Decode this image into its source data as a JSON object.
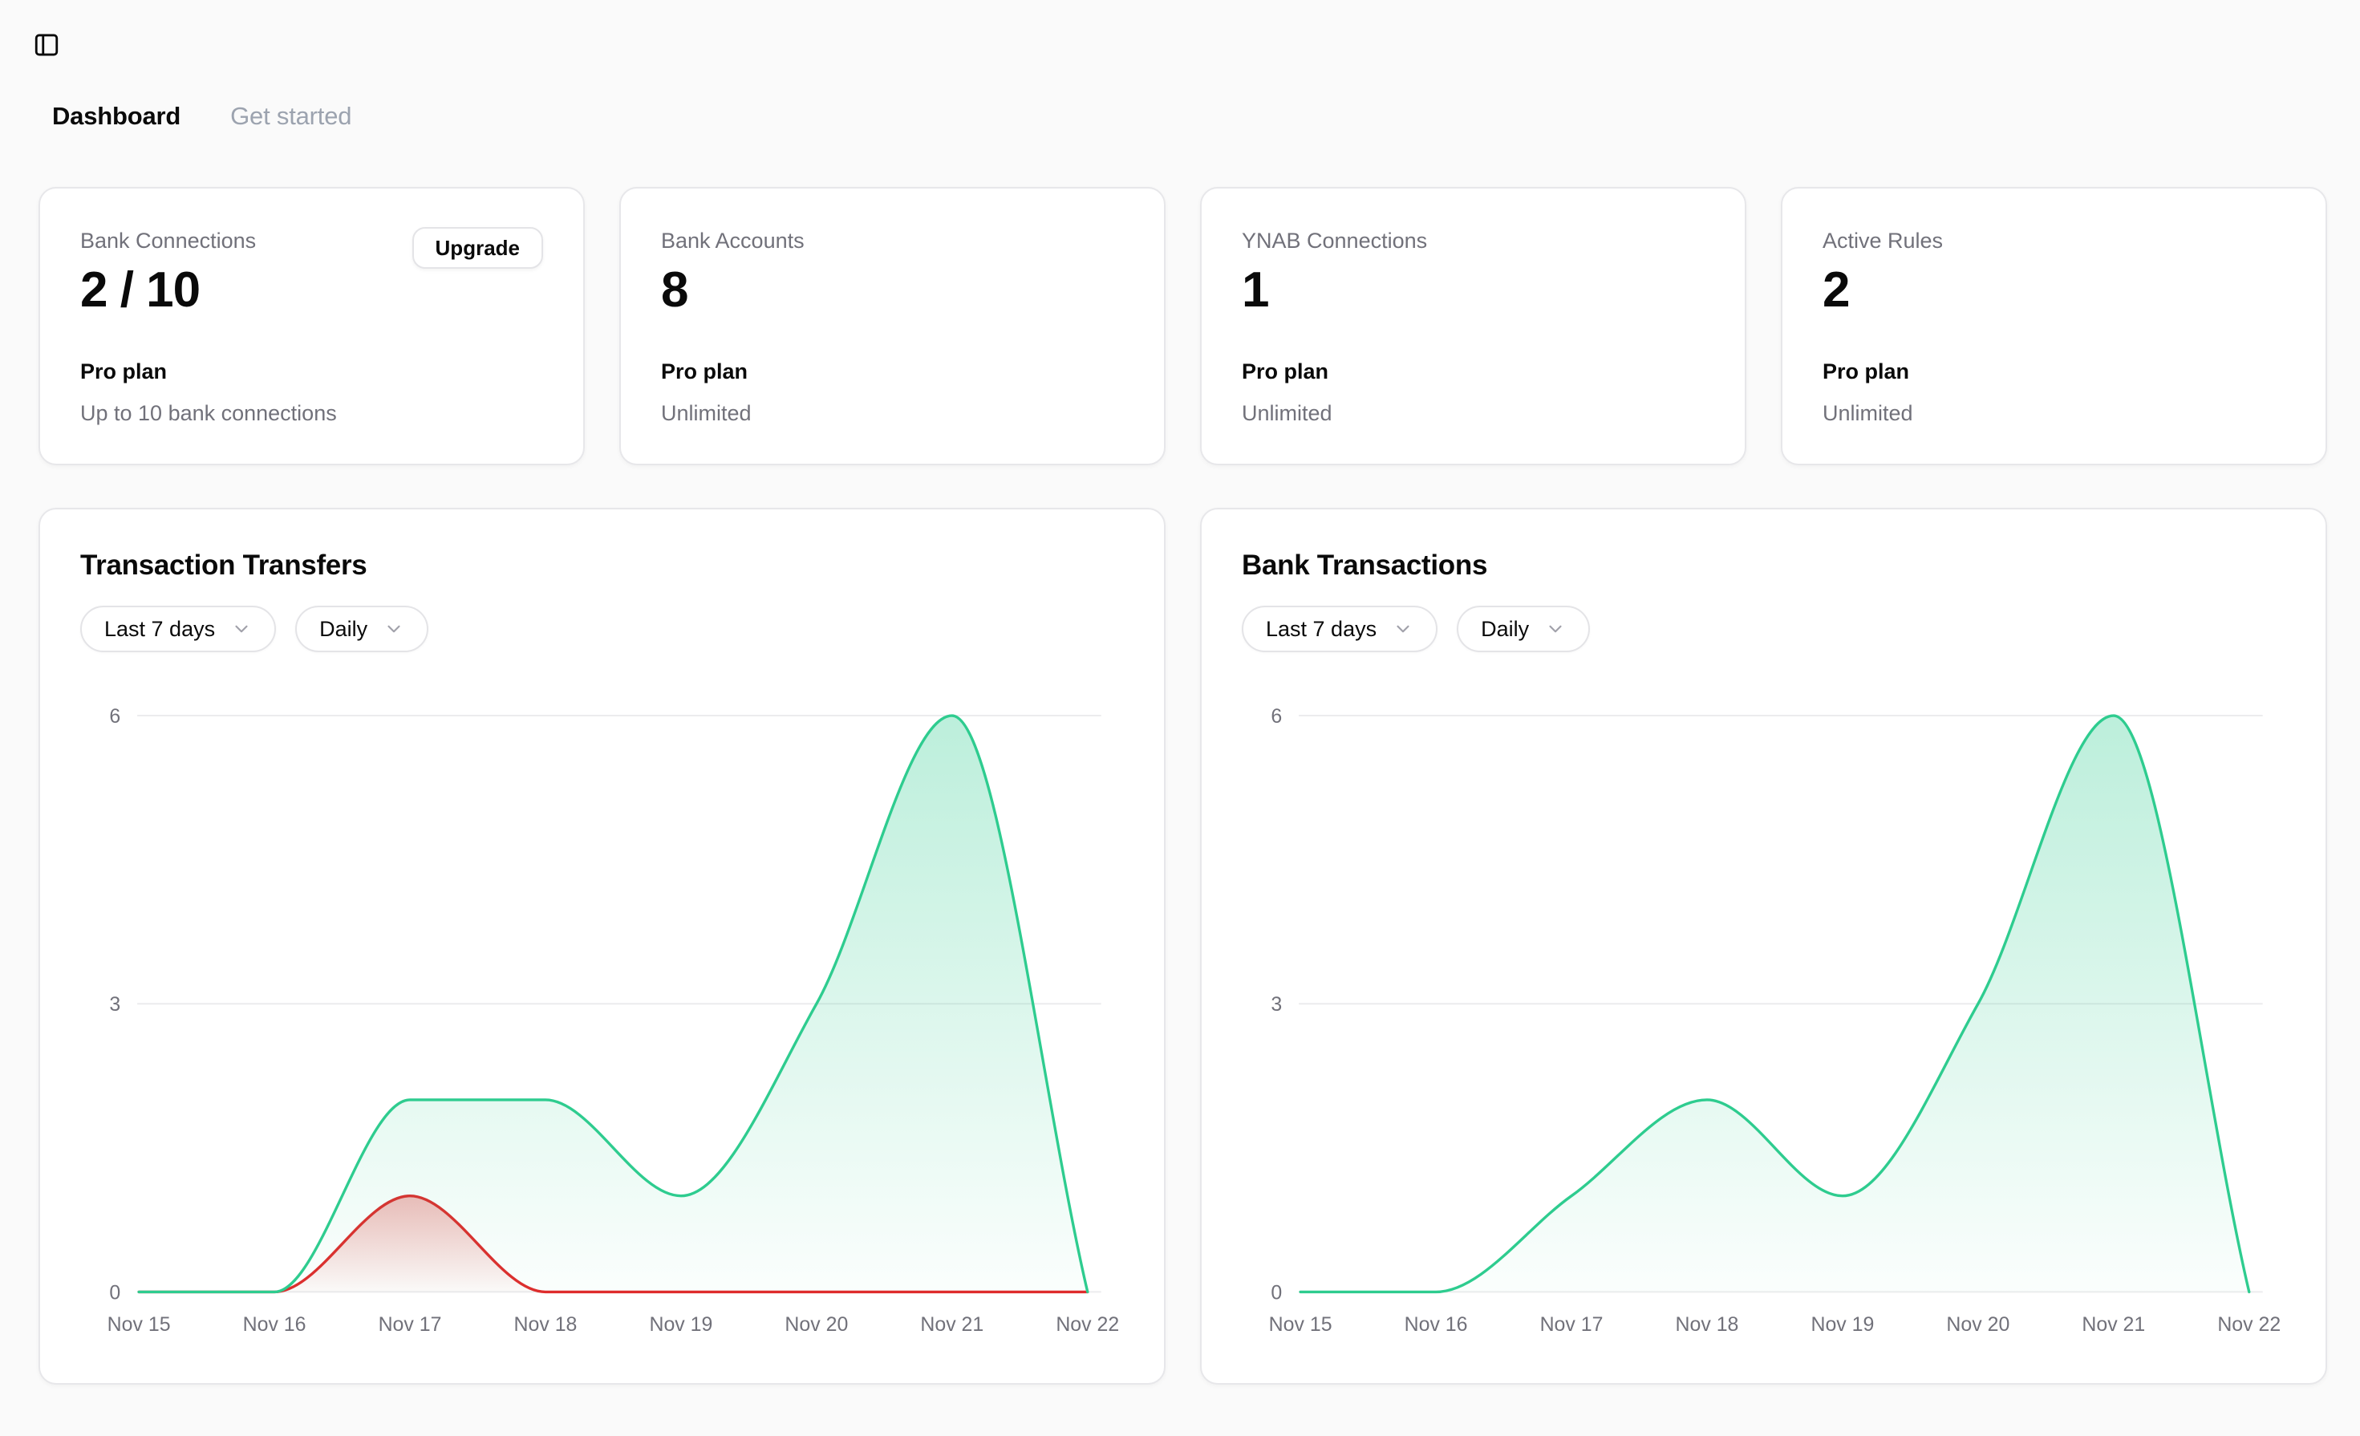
{
  "window": {
    "background": "#fafafa"
  },
  "icons": {
    "sidebar_toggle": "panel-left-icon",
    "dropdown": "chevron-down-icon"
  },
  "colors": {
    "card_background": "#ffffff",
    "card_border": "#e7e7ea",
    "text": "#0a0a0a",
    "muted_text": "#71717a",
    "inactive_tab": "#9ca3af",
    "gridline": "#ececee",
    "series_green": "#2ecc8f",
    "series_red": "#e02b2b"
  },
  "tabs": [
    {
      "label": "Dashboard",
      "active": true
    },
    {
      "label": "Get started",
      "active": false
    }
  ],
  "stat_cards": [
    {
      "label": "Bank Connections",
      "value": "2 / 10",
      "action": "Upgrade",
      "plan": "Pro plan",
      "plan_detail": "Up to 10 bank connections"
    },
    {
      "label": "Bank Accounts",
      "value": "8",
      "plan": "Pro plan",
      "plan_detail": "Unlimited"
    },
    {
      "label": "YNAB Connections",
      "value": "1",
      "plan": "Pro plan",
      "plan_detail": "Unlimited"
    },
    {
      "label": "Active Rules",
      "value": "2",
      "plan": "Pro plan",
      "plan_detail": "Unlimited"
    }
  ],
  "chart_data": [
    {
      "type": "area",
      "title": "Transaction Transfers",
      "filters": [
        {
          "label": "Last 7 days"
        },
        {
          "label": "Daily"
        }
      ],
      "x": [
        "Nov 15",
        "Nov 16",
        "Nov 17",
        "Nov 18",
        "Nov 19",
        "Nov 20",
        "Nov 21",
        "Nov 22"
      ],
      "y_ticks": [
        0,
        3,
        6
      ],
      "ylim": [
        0,
        6
      ],
      "grid": true,
      "legend": false,
      "curve": "monotone",
      "series": [
        {
          "color": "#e02b2b",
          "values": [
            0,
            0,
            1,
            0,
            0,
            0,
            0,
            0
          ]
        },
        {
          "color": "#2ecc8f",
          "values": [
            0,
            0,
            2,
            2,
            1,
            3,
            6,
            0
          ]
        }
      ]
    },
    {
      "type": "area",
      "title": "Bank Transactions",
      "filters": [
        {
          "label": "Last 7 days"
        },
        {
          "label": "Daily"
        }
      ],
      "x": [
        "Nov 15",
        "Nov 16",
        "Nov 17",
        "Nov 18",
        "Nov 19",
        "Nov 20",
        "Nov 21",
        "Nov 22"
      ],
      "y_ticks": [
        0,
        3,
        6
      ],
      "ylim": [
        0,
        6
      ],
      "grid": true,
      "legend": false,
      "curve": "monotone",
      "series": [
        {
          "color": "#2ecc8f",
          "values": [
            0,
            0,
            1,
            2,
            1,
            3,
            6,
            0
          ]
        }
      ]
    }
  ]
}
